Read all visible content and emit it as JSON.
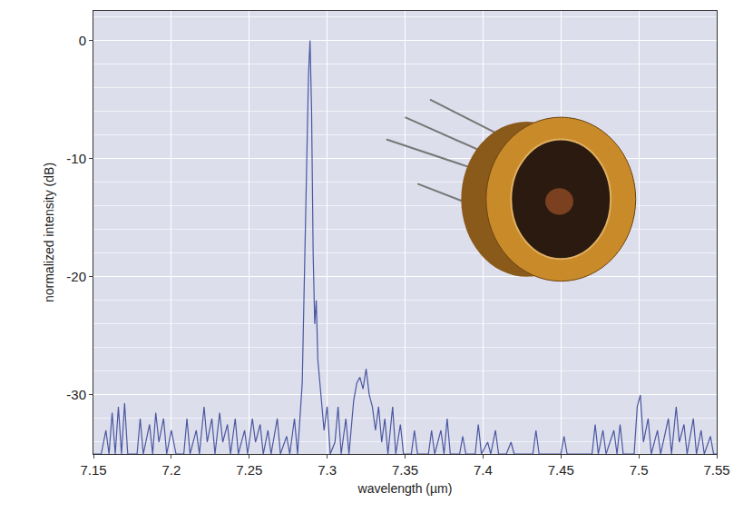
{
  "chart_data": {
    "type": "line",
    "xlabel": "wavelength (µm)",
    "ylabel": "normalized intensity (dB)",
    "x": [
      7.15,
      7.155,
      7.158,
      7.16,
      7.162,
      7.164,
      7.166,
      7.168,
      7.17,
      7.172,
      7.178,
      7.18,
      7.182,
      7.186,
      7.188,
      7.19,
      7.192,
      7.195,
      7.197,
      7.2,
      7.203,
      7.208,
      7.21,
      7.212,
      7.216,
      7.218,
      7.221,
      7.223,
      7.226,
      7.228,
      7.231,
      7.233,
      7.236,
      7.238,
      7.241,
      7.243,
      7.247,
      7.249,
      7.252,
      7.254,
      7.257,
      7.259,
      7.262,
      7.264,
      7.268,
      7.27,
      7.274,
      7.276,
      7.279,
      7.281,
      7.284,
      7.286,
      7.288,
      7.289,
      7.29,
      7.291,
      7.292,
      7.293,
      7.294,
      7.296,
      7.298,
      7.3,
      7.302,
      7.305,
      7.307,
      7.309,
      7.312,
      7.314,
      7.317,
      7.319,
      7.321,
      7.323,
      7.325,
      7.327,
      7.329,
      7.331,
      7.333,
      7.335,
      7.337,
      7.339,
      7.342,
      7.344,
      7.347,
      7.349,
      7.354,
      7.356,
      7.358,
      7.365,
      7.367,
      7.369,
      7.373,
      7.375,
      7.377,
      7.379,
      7.385,
      7.387,
      7.389,
      7.395,
      7.397,
      7.399,
      7.403,
      7.405,
      7.408,
      7.41,
      7.415,
      7.418,
      7.42,
      7.432,
      7.434,
      7.436,
      7.45,
      7.452,
      7.454,
      7.47,
      7.472,
      7.474,
      7.477,
      7.479,
      7.484,
      7.486,
      7.488,
      7.49,
      7.497,
      7.499,
      7.501,
      7.503,
      7.506,
      7.508,
      7.512,
      7.514,
      7.519,
      7.521,
      7.524,
      7.526,
      7.529,
      7.531,
      7.535,
      7.537,
      7.54,
      7.542,
      7.546,
      7.548,
      7.55
    ],
    "values": [
      -35,
      -35,
      -33,
      -35,
      -31.5,
      -35,
      -31,
      -35,
      -30.7,
      -35,
      -35,
      -32,
      -35,
      -32.5,
      -35,
      -31.5,
      -34,
      -32,
      -35,
      -33,
      -35,
      -35,
      -32,
      -35,
      -33,
      -35,
      -31,
      -34,
      -32,
      -35,
      -31.5,
      -34,
      -32.5,
      -35,
      -32,
      -35,
      -33,
      -35,
      -32,
      -34,
      -32.5,
      -35,
      -33,
      -35,
      -32,
      -35,
      -33.5,
      -35,
      -32,
      -35,
      -29,
      -15,
      -3,
      0,
      -6,
      -18,
      -24,
      -22,
      -27,
      -30,
      -33,
      -31,
      -35,
      -34,
      -31,
      -35,
      -32,
      -35,
      -30.5,
      -29,
      -28.5,
      -29.5,
      -27.8,
      -30,
      -31,
      -33,
      -31,
      -34,
      -32,
      -35,
      -31,
      -35,
      -32.5,
      -35,
      -35,
      -33,
      -35,
      -35,
      -33,
      -35,
      -33,
      -35,
      -32,
      -35,
      -35,
      -33.5,
      -35,
      -35,
      -32.5,
      -35,
      -34,
      -35,
      -33,
      -35,
      -35,
      -34,
      -35,
      -35,
      -33,
      -35,
      -35,
      -33.5,
      -35,
      -35,
      -32.5,
      -35,
      -33,
      -35,
      -33,
      -35,
      -32.5,
      -35,
      -35,
      -31,
      -30,
      -34,
      -32,
      -35,
      -33,
      -35,
      -32,
      -35,
      -31,
      -34,
      -32.5,
      -35,
      -32,
      -35,
      -33,
      -35,
      -33.5,
      -35,
      -35
    ],
    "color": "#4a57a0",
    "xlim": [
      7.15,
      7.55
    ],
    "xticks": [
      7.15,
      7.2,
      7.25,
      7.3,
      7.35,
      7.4,
      7.45,
      7.5,
      7.55
    ],
    "ylim": [
      -35,
      2.5
    ],
    "yticks": [
      -30,
      -20,
      -10,
      0
    ],
    "grid": true
  }
}
